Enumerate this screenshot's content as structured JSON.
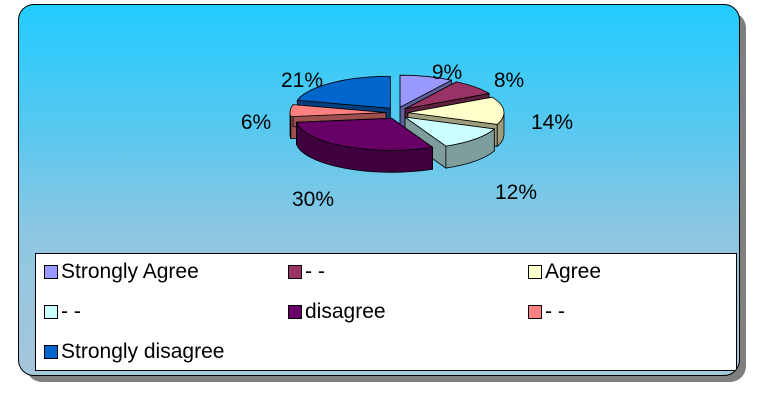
{
  "chart_data": {
    "type": "pie",
    "subtype": "exploded-3d",
    "slices": [
      {
        "label": "Strongly Agree",
        "value": 9,
        "percent_label": "9%",
        "color": "#9999ff"
      },
      {
        "label": "- -",
        "value": 8,
        "percent_label": "8%",
        "color": "#993366"
      },
      {
        "label": "Agree",
        "value": 14,
        "percent_label": "14%",
        "color": "#ffffcc"
      },
      {
        "label": "- -",
        "value": 12,
        "percent_label": "12%",
        "color": "#ccffff"
      },
      {
        "label": "disagree",
        "value": 30,
        "percent_label": "30%",
        "color": "#660066"
      },
      {
        "label": "- -",
        "value": 6,
        "percent_label": "6%",
        "color": "#ff8080"
      },
      {
        "label": "Strongly disagree",
        "value": 21,
        "percent_label": "21%",
        "color": "#0066cc"
      }
    ],
    "legend_position": "bottom",
    "title": ""
  },
  "legend": {
    "items": [
      {
        "label": "Strongly Agree",
        "color": "#9999ff"
      },
      {
        "label": "- -",
        "color": "#993366"
      },
      {
        "label": "Agree",
        "color": "#ffffcc"
      },
      {
        "label": "- -",
        "color": "#ccffff"
      },
      {
        "label": "disagree",
        "color": "#660066"
      },
      {
        "label": "- -",
        "color": "#ff8080"
      },
      {
        "label": "Strongly disagree",
        "color": "#0066cc"
      }
    ]
  }
}
